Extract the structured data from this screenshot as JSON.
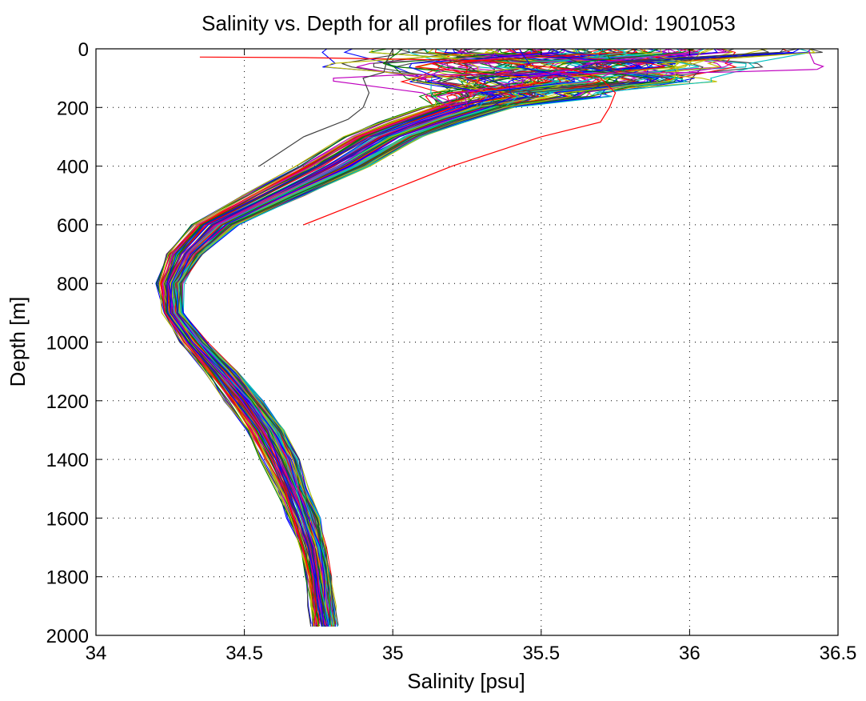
{
  "chart_data": {
    "type": "line",
    "title": "Salinity vs. Depth for all profiles for float WMOId: 1901053",
    "xlabel": "Salinity [psu]",
    "ylabel": "Depth [m]",
    "xlim": [
      34,
      36.5
    ],
    "ylim": [
      0,
      2000
    ],
    "y_axis_reversed": true,
    "grid": true,
    "grid_style": "dotted",
    "x_ticks": [
      34,
      34.5,
      35,
      35.5,
      36,
      36.5
    ],
    "x_tick_labels": [
      "34",
      "34.5",
      "35",
      "35.5",
      "36",
      "36.5"
    ],
    "y_ticks": [
      0,
      200,
      400,
      600,
      800,
      1000,
      1200,
      1400,
      1600,
      1800,
      2000
    ],
    "y_tick_labels": [
      "0",
      "200",
      "400",
      "600",
      "800",
      "1000",
      "1200",
      "1400",
      "1600",
      "1800",
      "2000"
    ],
    "series_colors": [
      "#0000ff",
      "#008000",
      "#ff0000",
      "#00bfbf",
      "#bf00bf",
      "#bfbf00",
      "#404040"
    ],
    "profile_count": 120,
    "typical_profile": {
      "depth": [
        0,
        50,
        100,
        150,
        200,
        250,
        300,
        400,
        500,
        600,
        700,
        800,
        900,
        1000,
        1100,
        1200,
        1300,
        1400,
        1500,
        1600,
        1700,
        1800,
        1900,
        1970
      ],
      "salinity": [
        35.6,
        35.55,
        35.5,
        35.4,
        35.25,
        35.1,
        34.97,
        34.8,
        34.6,
        34.4,
        34.3,
        34.25,
        34.26,
        34.33,
        34.42,
        34.5,
        34.57,
        34.62,
        34.66,
        34.7,
        34.73,
        34.75,
        34.76,
        34.77
      ]
    },
    "profile_spread": {
      "depth": [
        0,
        50,
        100,
        150,
        200,
        250,
        300,
        400,
        500,
        600,
        700,
        800,
        900,
        1000,
        1100,
        1200,
        1300,
        1400,
        1500,
        1600,
        1700,
        1800,
        1900,
        1970
      ],
      "salinity_spread": [
        0.45,
        0.4,
        0.3,
        0.2,
        0.15,
        0.14,
        0.13,
        0.12,
        0.1,
        0.08,
        0.06,
        0.04,
        0.03,
        0.04,
        0.05,
        0.06,
        0.06,
        0.06,
        0.05,
        0.05,
        0.04,
        0.04,
        0.04,
        0.04
      ]
    },
    "notable_profiles": [
      {
        "color": "#ff0000",
        "depth": [
          28,
          30,
          40,
          70,
          100,
          150,
          200,
          250,
          300,
          400,
          500,
          600
        ],
        "salinity": [
          34.35,
          34.7,
          35.3,
          35.6,
          35.7,
          35.75,
          35.73,
          35.7,
          35.5,
          35.2,
          34.95,
          34.7
        ]
      },
      {
        "color": "#bf00bf",
        "depth": [
          5,
          50,
          60,
          70,
          80,
          90,
          100,
          110,
          150,
          200
        ],
        "salinity": [
          36.4,
          36.42,
          36.45,
          36.43,
          36.1,
          35.0,
          34.8,
          34.8,
          35.1,
          35.2
        ]
      },
      {
        "color": "#404040",
        "depth": [
          0,
          40,
          80,
          100,
          150,
          200,
          240,
          300,
          400
        ],
        "salinity": [
          35.0,
          34.98,
          34.97,
          34.9,
          34.92,
          34.9,
          34.85,
          34.7,
          34.55
        ]
      }
    ]
  }
}
